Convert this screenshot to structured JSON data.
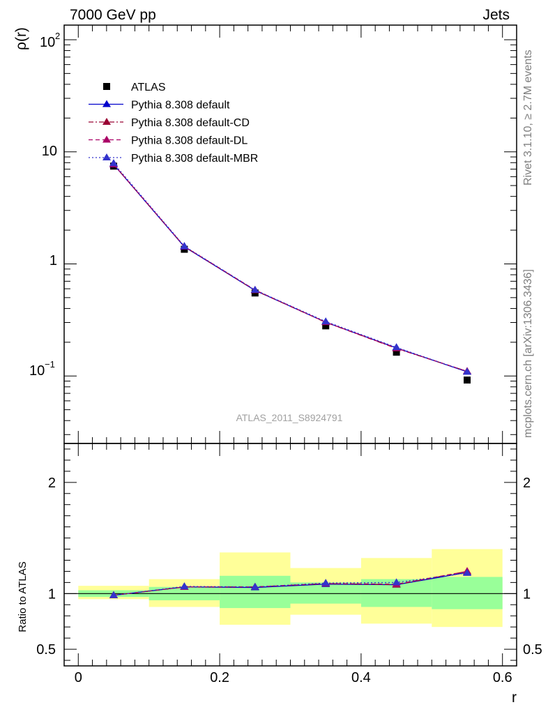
{
  "header": {
    "left_label": "7000 GeV pp",
    "right_label": "Jets"
  },
  "side_labels": {
    "rivet": "Rivet 3.1.10, ≥ 2.7M events",
    "source": "mcplots.cern.ch [arXiv:1306.3436]"
  },
  "watermark": "ATLAS_2011_S8924791",
  "chart_data": [
    {
      "type": "line",
      "ylabel": "ρ(r)",
      "yscale": "log",
      "xlim": [
        -0.02,
        0.62
      ],
      "ylim": [
        0.025,
        135
      ],
      "ytick_labels": {
        "tick_0_1": "10",
        "tick_0_1_exp": "−1",
        "tick_1": "1",
        "tick_10": "10",
        "tick_100": "10",
        "tick_100_exp": "2"
      },
      "x": [
        0.05,
        0.15,
        0.25,
        0.35,
        0.45,
        0.55
      ],
      "series": [
        {
          "name": "ATLAS",
          "color": "#000000",
          "marker": "square",
          "values": [
            7.45,
            1.35,
            0.55,
            0.28,
            0.163,
            0.092
          ]
        },
        {
          "name": "Pythia 8.308 default",
          "color": "#0000cc",
          "marker": "triangle",
          "line": "solid",
          "values": [
            7.7,
            1.42,
            0.58,
            0.302,
            0.178,
            0.109
          ]
        },
        {
          "name": "Pythia 8.308 default-CD",
          "color": "#990033",
          "marker": "triangle",
          "line": "dashdot",
          "values": [
            7.72,
            1.43,
            0.58,
            0.301,
            0.176,
            0.11
          ]
        },
        {
          "name": "Pythia 8.308 default-DL",
          "color": "#aa0066",
          "marker": "triangle",
          "line": "dashed",
          "values": [
            7.73,
            1.43,
            0.585,
            0.302,
            0.177,
            0.11
          ]
        },
        {
          "name": "Pythia 8.308 default-MBR",
          "color": "#3333cc",
          "marker": "triangle",
          "line": "dotted",
          "values": [
            7.9,
            1.44,
            0.585,
            0.306,
            0.18,
            0.109
          ]
        }
      ],
      "legend": "top-left"
    },
    {
      "type": "line",
      "ylabel": "Ratio to ATLAS",
      "xlabel": "r",
      "xlim": [
        -0.02,
        0.62
      ],
      "ylim": [
        0.35,
        2.35
      ],
      "xtick_labels": [
        "0",
        "0.2",
        "0.4",
        "0.6"
      ],
      "ytick_labels": [
        "0.5",
        "1",
        "2"
      ],
      "ytick_values": [
        0.5,
        1,
        2
      ],
      "x": [
        0.05,
        0.15,
        0.25,
        0.35,
        0.45,
        0.55
      ],
      "bins": [
        [
          0.0,
          0.1
        ],
        [
          0.1,
          0.2
        ],
        [
          0.2,
          0.3
        ],
        [
          0.3,
          0.4
        ],
        [
          0.4,
          0.5
        ],
        [
          0.5,
          0.6
        ]
      ],
      "bands": [
        {
          "name": "yellow",
          "color": "#ffff99",
          "lo": [
            0.95,
            0.88,
            0.72,
            0.81,
            0.73,
            0.7
          ],
          "hi": [
            1.07,
            1.13,
            1.37,
            1.23,
            1.32,
            1.4
          ]
        },
        {
          "name": "green",
          "color": "#99ff99",
          "lo": [
            0.97,
            0.94,
            0.87,
            0.91,
            0.88,
            0.86
          ],
          "hi": [
            1.03,
            1.06,
            1.16,
            1.1,
            1.13,
            1.15
          ]
        }
      ],
      "series": [
        {
          "name": "Pythia 8.308 default",
          "color": "#0000cc",
          "line": "solid",
          "values": [
            0.985,
            1.06,
            1.055,
            1.085,
            1.08,
            1.19
          ]
        },
        {
          "name": "Pythia 8.308 default-CD",
          "color": "#990033",
          "line": "dashdot",
          "values": [
            0.985,
            1.06,
            1.06,
            1.09,
            1.08,
            1.2
          ]
        },
        {
          "name": "Pythia 8.308 default-DL",
          "color": "#aa0066",
          "line": "dashed",
          "values": [
            0.985,
            1.06,
            1.06,
            1.09,
            1.085,
            1.2
          ]
        },
        {
          "name": "Pythia 8.308 default-MBR",
          "color": "#3333cc",
          "line": "dotted",
          "values": [
            0.985,
            1.065,
            1.06,
            1.095,
            1.1,
            1.185
          ]
        }
      ]
    }
  ]
}
